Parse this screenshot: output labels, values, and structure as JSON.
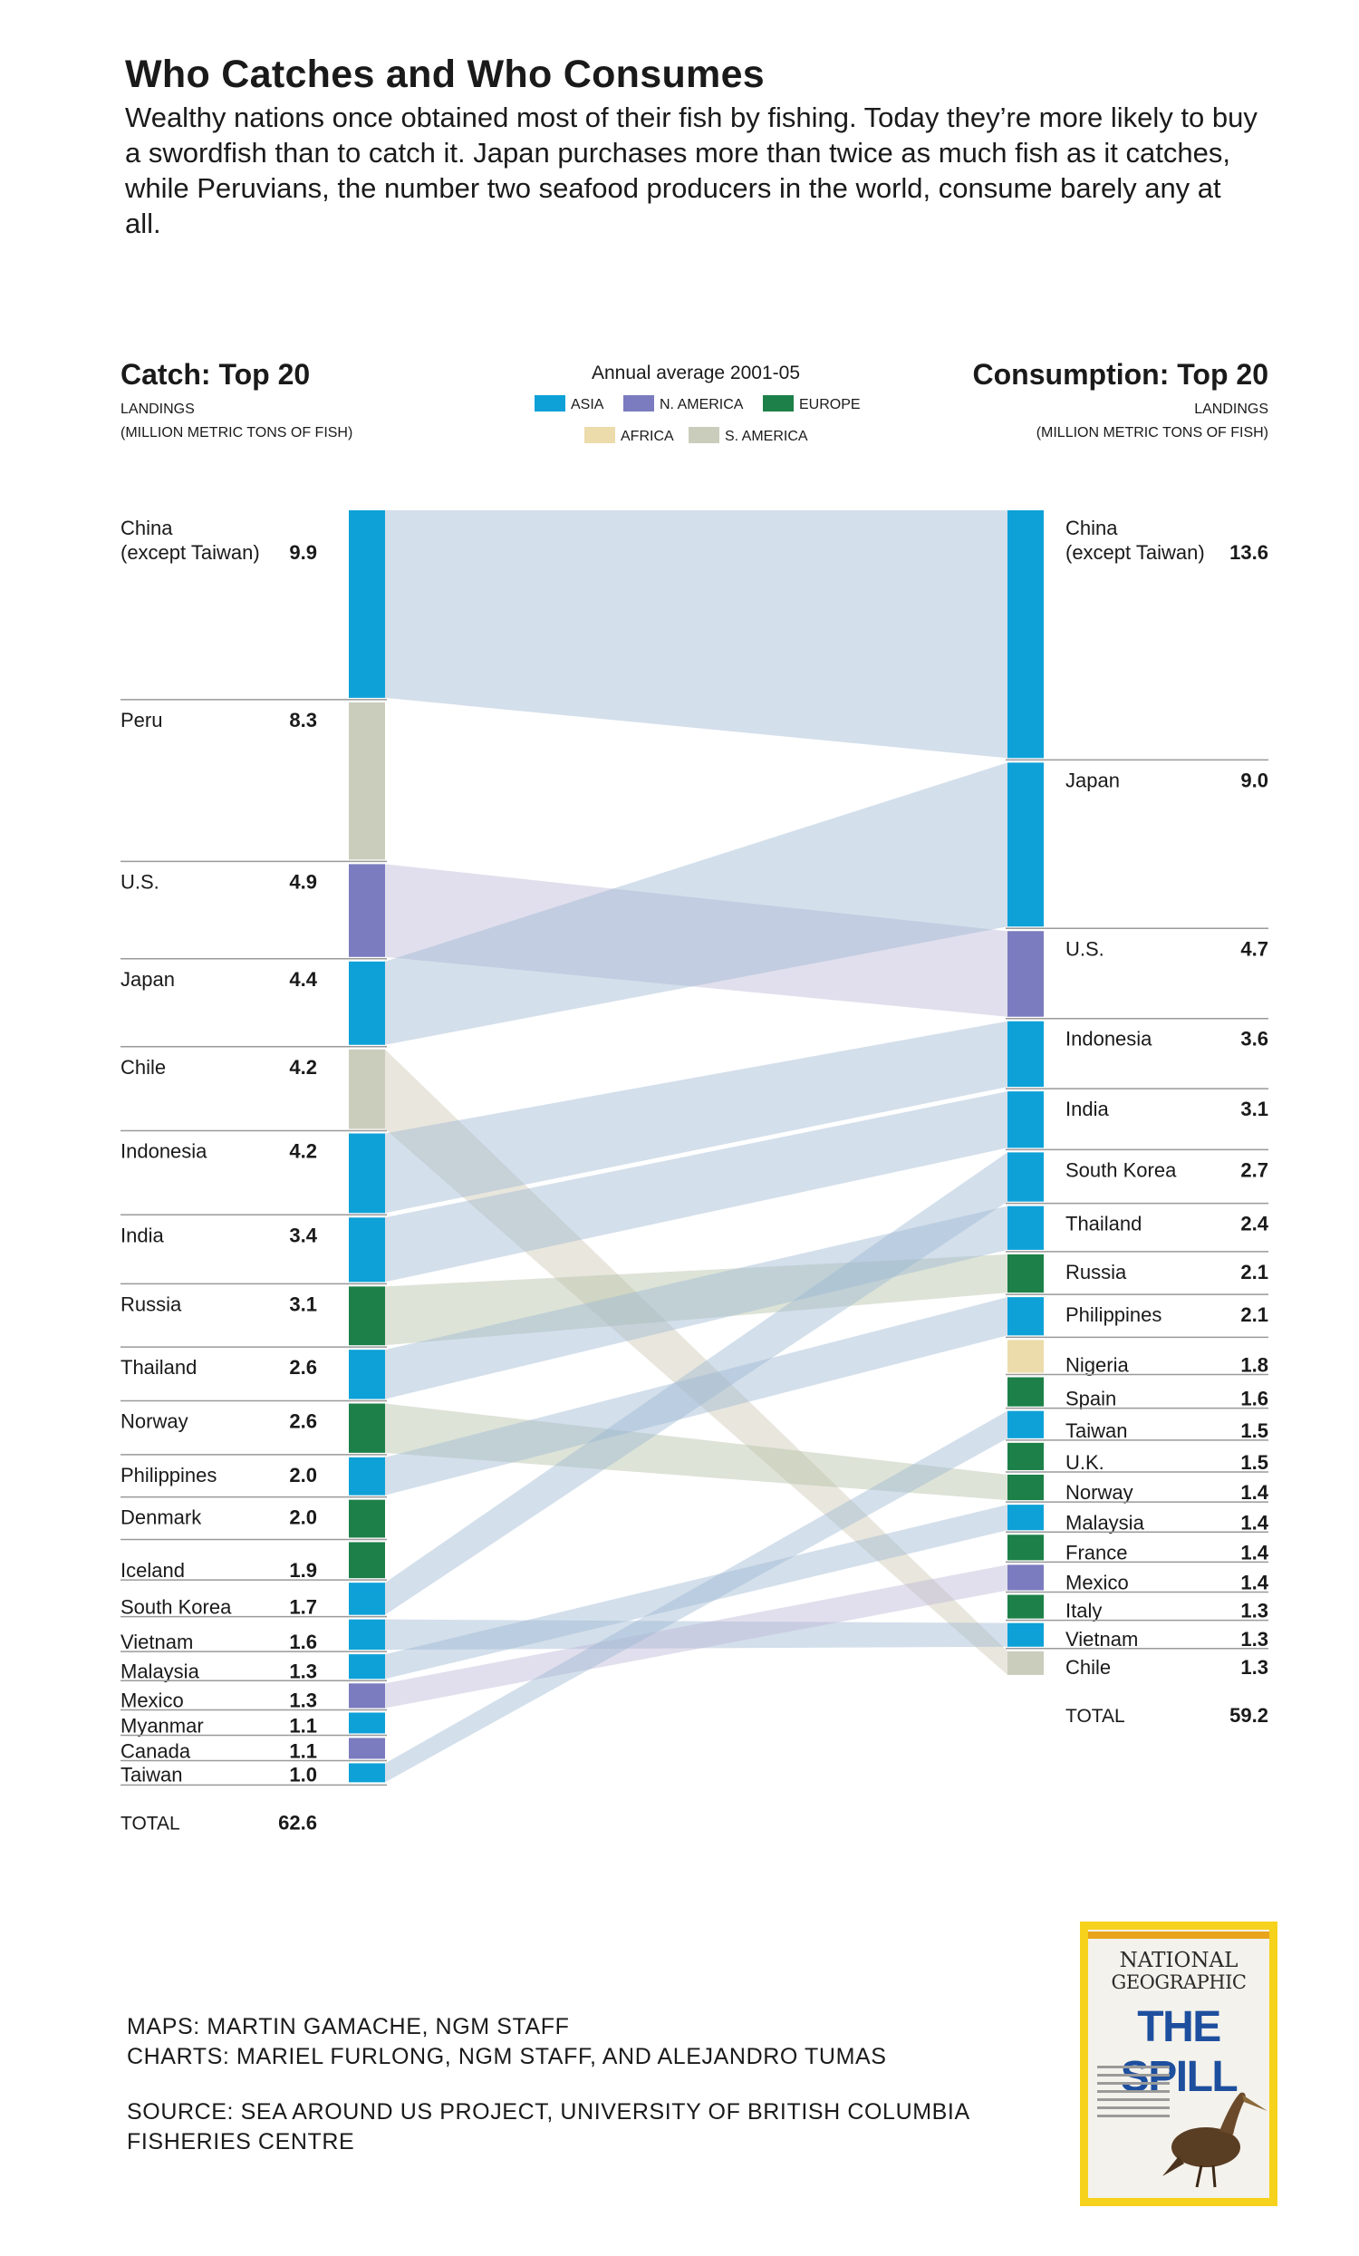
{
  "title": "Who Catches and Who Consumes",
  "intro": "Wealthy nations once obtained most of their fish by fishing. Today they’re more likely to buy a swordfish than to catch it. Japan purchases more than twice as much fish as it catches, while Peruvians, the number two seafood producers in the world, consume barely any at all.",
  "colors": {
    "ASIA": "#0ea1d8",
    "N. AMERICA": "#7b7bbf",
    "EUROPE": "#1d8048",
    "AFRICA": "#ecdcab",
    "S. AMERICA": "#cbcdbc"
  },
  "chart_data": {
    "type": "slope-flow",
    "period": "Annual average 2001-05",
    "legend": [
      "ASIA",
      "N. AMERICA",
      "EUROPE",
      "AFRICA",
      "S. AMERICA"
    ],
    "catch": {
      "heading": "Catch: Top 20",
      "sub1": "LANDINGS",
      "sub2": "(MILLION METRIC TONS OF FISH)",
      "total_label": "TOTAL",
      "total": "62.6",
      "items": [
        {
          "name": "China\n(except Taiwan)",
          "value": 9.9,
          "label": "9.9",
          "region": "ASIA"
        },
        {
          "name": "Peru",
          "value": 8.3,
          "label": "8.3",
          "region": "S. AMERICA"
        },
        {
          "name": "U.S.",
          "value": 4.9,
          "label": "4.9",
          "region": "N. AMERICA"
        },
        {
          "name": "Japan",
          "value": 4.4,
          "label": "4.4",
          "region": "ASIA"
        },
        {
          "name": "Chile",
          "value": 4.2,
          "label": "4.2",
          "region": "S. AMERICA"
        },
        {
          "name": "Indonesia",
          "value": 4.2,
          "label": "4.2",
          "region": "ASIA"
        },
        {
          "name": "India",
          "value": 3.4,
          "label": "3.4",
          "region": "ASIA"
        },
        {
          "name": "Russia",
          "value": 3.1,
          "label": "3.1",
          "region": "EUROPE"
        },
        {
          "name": "Thailand",
          "value": 2.6,
          "label": "2.6",
          "region": "ASIA"
        },
        {
          "name": "Norway",
          "value": 2.6,
          "label": "2.6",
          "region": "EUROPE"
        },
        {
          "name": "Philippines",
          "value": 2.0,
          "label": "2.0",
          "region": "ASIA"
        },
        {
          "name": "Denmark",
          "value": 2.0,
          "label": "2.0",
          "region": "EUROPE"
        },
        {
          "name": "Iceland",
          "value": 1.9,
          "label": "1.9",
          "region": "EUROPE"
        },
        {
          "name": "South Korea",
          "value": 1.7,
          "label": "1.7",
          "region": "ASIA"
        },
        {
          "name": "Vietnam",
          "value": 1.6,
          "label": "1.6",
          "region": "ASIA"
        },
        {
          "name": "Malaysia",
          "value": 1.3,
          "label": "1.3",
          "region": "ASIA"
        },
        {
          "name": "Mexico",
          "value": 1.3,
          "label": "1.3",
          "region": "N. AMERICA"
        },
        {
          "name": "Myanmar",
          "value": 1.1,
          "label": "1.1",
          "region": "ASIA"
        },
        {
          "name": "Canada",
          "value": 1.1,
          "label": "1.1",
          "region": "N. AMERICA"
        },
        {
          "name": "Taiwan",
          "value": 1.0,
          "label": "1.0",
          "region": "ASIA"
        }
      ]
    },
    "consumption": {
      "heading": "Consumption: Top 20",
      "sub1": "LANDINGS",
      "sub2": "(MILLION METRIC TONS OF FISH)",
      "total_label": "TOTAL",
      "total": "59.2",
      "items": [
        {
          "name": "China\n(except Taiwan)",
          "value": 13.6,
          "label": "13.6",
          "region": "ASIA"
        },
        {
          "name": "Japan",
          "value": 9.0,
          "label": "9.0",
          "region": "ASIA"
        },
        {
          "name": "U.S.",
          "value": 4.7,
          "label": "4.7",
          "region": "N. AMERICA"
        },
        {
          "name": "Indonesia",
          "value": 3.6,
          "label": "3.6",
          "region": "ASIA"
        },
        {
          "name": "India",
          "value": 3.1,
          "label": "3.1",
          "region": "ASIA"
        },
        {
          "name": "South Korea",
          "value": 2.7,
          "label": "2.7",
          "region": "ASIA"
        },
        {
          "name": "Thailand",
          "value": 2.4,
          "label": "2.4",
          "region": "ASIA"
        },
        {
          "name": "Russia",
          "value": 2.1,
          "label": "2.1",
          "region": "EUROPE"
        },
        {
          "name": "Philippines",
          "value": 2.1,
          "label": "2.1",
          "region": "ASIA"
        },
        {
          "name": "Nigeria",
          "value": 1.8,
          "label": "1.8",
          "region": "AFRICA"
        },
        {
          "name": "Spain",
          "value": 1.6,
          "label": "1.6",
          "region": "EUROPE"
        },
        {
          "name": "Taiwan",
          "value": 1.5,
          "label": "1.5",
          "region": "ASIA"
        },
        {
          "name": "U.K.",
          "value": 1.5,
          "label": "1.5",
          "region": "EUROPE"
        },
        {
          "name": "Norway",
          "value": 1.4,
          "label": "1.4",
          "region": "EUROPE"
        },
        {
          "name": "Malaysia",
          "value": 1.4,
          "label": "1.4",
          "region": "ASIA"
        },
        {
          "name": "France",
          "value": 1.4,
          "label": "1.4",
          "region": "EUROPE"
        },
        {
          "name": "Mexico",
          "value": 1.4,
          "label": "1.4",
          "region": "N. AMERICA"
        },
        {
          "name": "Italy",
          "value": 1.3,
          "label": "1.3",
          "region": "EUROPE"
        },
        {
          "name": "Vietnam",
          "value": 1.3,
          "label": "1.3",
          "region": "ASIA"
        },
        {
          "name": "Chile",
          "value": 1.3,
          "label": "1.3",
          "region": "S. AMERICA"
        }
      ]
    }
  },
  "credits": {
    "maps": "MAPS: MARTIN GAMACHE, NGM STAFF",
    "charts": "CHARTS: MARIEL FURLONG, NGM STAFF, AND ALEJANDRO TUMAS",
    "source1": "SOURCE: SEA AROUND US PROJECT, UNIVERSITY OF BRITISH COLUMBIA",
    "source2": "FISHERIES CENTRE"
  },
  "cover": {
    "brand1": "NATIONAL",
    "brand2": "GEOGRAPHIC",
    "headline": "THE SPILL"
  }
}
